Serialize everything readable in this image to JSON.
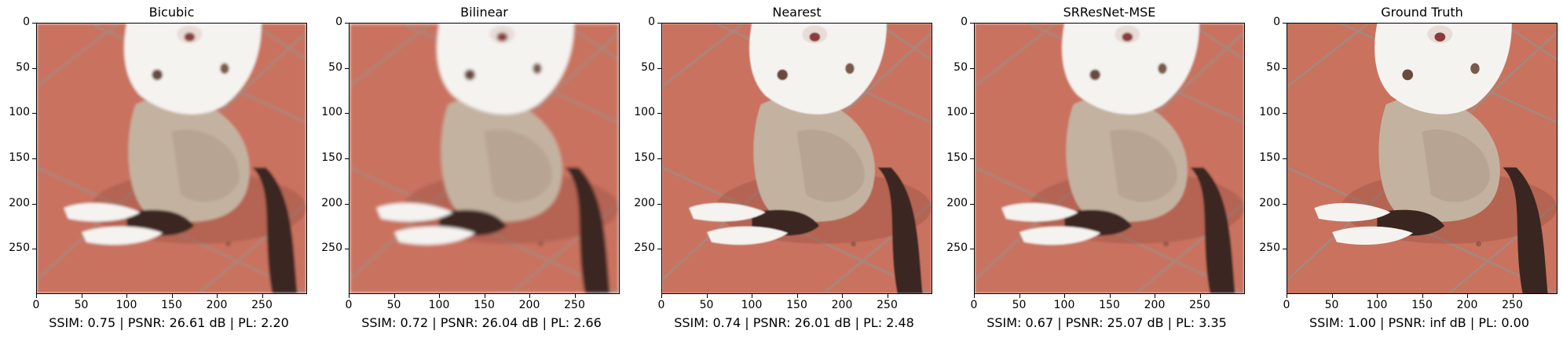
{
  "panels": [
    {
      "title": "Bicubic",
      "caption": "SSIM: 0.75 | PSNR: 26.61 dB | PL: 2.20",
      "blur": 1.4
    },
    {
      "title": "Bilinear",
      "caption": "SSIM: 0.72 | PSNR: 26.04 dB | PL: 2.66",
      "blur": 1.8
    },
    {
      "title": "Nearest",
      "caption": "SSIM: 0.74 | PSNR: 26.01 dB | PL: 2.48",
      "blur": 0.8
    },
    {
      "title": "SRResNet-MSE",
      "caption": "SSIM: 0.67 | PSNR: 25.07 dB | PL: 3.35",
      "blur": 1.2
    },
    {
      "title": "Ground Truth",
      "caption": "SSIM: 1.00 | PSNR: inf dB | PL: 0.00",
      "blur": 0
    }
  ],
  "axes": {
    "xticks": [
      "0",
      "50",
      "100",
      "150",
      "200",
      "250"
    ],
    "yticks": [
      "0",
      "50",
      "100",
      "150",
      "200",
      "250"
    ],
    "range": [
      0,
      300
    ]
  },
  "scene": {
    "floor_color": "#c9725e",
    "grout_color": "#9a8f88",
    "fur_white": "#f5f3f0",
    "fur_beige": "#c4b2a0",
    "fur_dark": "#3a2620"
  }
}
